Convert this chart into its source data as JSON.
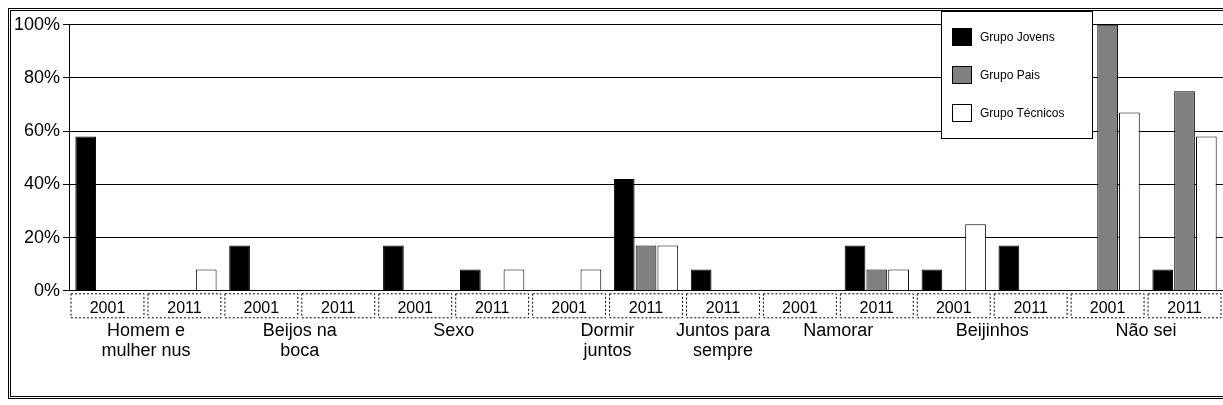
{
  "chart_data": {
    "type": "bar",
    "categories": [
      "2001",
      "2011",
      "2001",
      "2011",
      "2001",
      "2011",
      "2001",
      "2011",
      "2011",
      "2001",
      "2011",
      "2001",
      "2011",
      "2001",
      "2011"
    ],
    "series": [
      {
        "name": "Grupo Jovens",
        "color": "#000000",
        "values": [
          58,
          0,
          17,
          0,
          17,
          8,
          0,
          42,
          8,
          0,
          17,
          8,
          17,
          0,
          8
        ]
      },
      {
        "name": "Grupo Pais",
        "color": "#808080",
        "values": [
          0,
          0,
          0,
          0,
          0,
          0,
          0,
          17,
          0,
          0,
          8,
          0,
          0,
          100,
          75
        ]
      },
      {
        "name": "Grupo Técnicos",
        "color": "#ffffff",
        "values": [
          0,
          8,
          0,
          0,
          0,
          8,
          8,
          17,
          0,
          0,
          8,
          25,
          0,
          67,
          58
        ]
      }
    ],
    "ylim": [
      0,
      100
    ],
    "yticks": [
      {
        "value": 0,
        "label": "0%"
      },
      {
        "value": 20,
        "label": "20%"
      },
      {
        "value": 40,
        "label": "40%"
      },
      {
        "value": 60,
        "label": "60%"
      },
      {
        "value": 80,
        "label": "80%"
      },
      {
        "value": 100,
        "label": "100%"
      }
    ],
    "annotations": [
      "Homem e mulher nus",
      "Beijos na boca",
      "Sexo",
      "Dormir juntos",
      "Juntos para sempre",
      "Namorar",
      "Beijinhos",
      "Não sei"
    ],
    "grid": "y",
    "legend": "top right"
  }
}
